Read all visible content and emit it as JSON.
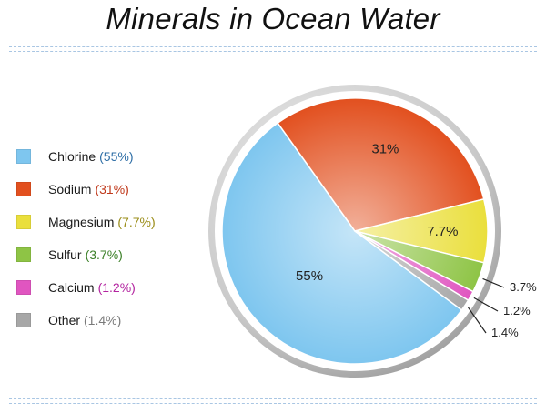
{
  "title": "Minerals in Ocean Water",
  "colors": {
    "chlorine": "#7ec6ef",
    "sodium": "#e2501f",
    "magnesium": "#eadf3c",
    "sulfur": "#8ec445",
    "calcium": "#e055c0",
    "other": "#a7a7a7",
    "ring": "#bdbdbd"
  },
  "legend": [
    {
      "name": "Chlorine",
      "pct": "(55%)",
      "color": "#7ec6ef",
      "text_color": "#2e6ea6"
    },
    {
      "name": "Sodium",
      "pct": "(31%)",
      "color": "#e2501f",
      "text_color": "#c0391b"
    },
    {
      "name": "Magnesium",
      "pct": "(7.7%)",
      "color": "#eadf3c",
      "text_color": "#9a8c17"
    },
    {
      "name": "Sulfur",
      "pct": "(3.7%)",
      "color": "#8ec445",
      "text_color": "#3b7f27"
    },
    {
      "name": "Calcium",
      "pct": "(1.2%)",
      "color": "#e055c0",
      "text_color": "#b324a0"
    },
    {
      "name": "Other",
      "pct": "(1.4%)",
      "color": "#a7a7a7",
      "text_color": "#7a7a7a"
    }
  ],
  "chart_data": {
    "type": "pie",
    "title": "Minerals in Ocean Water",
    "legend_position": "left",
    "slices": [
      {
        "label": "Chlorine",
        "value": 55,
        "display": "55%"
      },
      {
        "label": "Sodium",
        "value": 31,
        "display": "31%"
      },
      {
        "label": "Magnesium",
        "value": 7.7,
        "display": "7.7%"
      },
      {
        "label": "Sulfur",
        "value": 3.7,
        "display": "3.7%"
      },
      {
        "label": "Calcium",
        "value": 1.2,
        "display": "1.2%"
      },
      {
        "label": "Other",
        "value": 1.4,
        "display": "1.4%"
      }
    ]
  }
}
